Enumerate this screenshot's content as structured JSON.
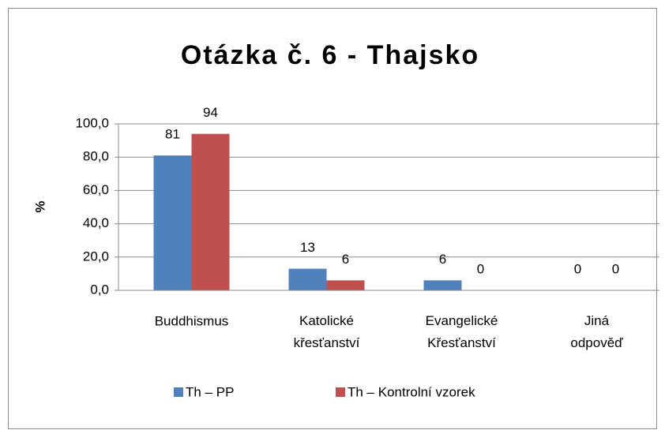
{
  "chart_data": {
    "type": "bar",
    "title": "Otázka č. 6 - Thajsko",
    "y_label": "%",
    "categories": [
      "Buddhismus",
      "Katolické křesťanství",
      "Evangelické Křesťanství",
      "Jiná odpověď"
    ],
    "series": [
      {
        "name": "Th – PP",
        "color": "#4f81bd",
        "values": [
          81,
          13,
          6,
          0
        ]
      },
      {
        "name": "Th – Kontrolní vzorek",
        "color": "#c0504d",
        "values": [
          94,
          6,
          0,
          0
        ]
      }
    ],
    "ylim": [
      0,
      100
    ],
    "yticks": [
      {
        "value": 0,
        "label": "0,0"
      },
      {
        "value": 20,
        "label": "20,0"
      },
      {
        "value": 40,
        "label": "40,0"
      },
      {
        "value": 60,
        "label": "60,0"
      },
      {
        "value": 80,
        "label": "80,0"
      },
      {
        "value": 100,
        "label": "100,0"
      }
    ],
    "grid": true,
    "legend": "bottom"
  }
}
